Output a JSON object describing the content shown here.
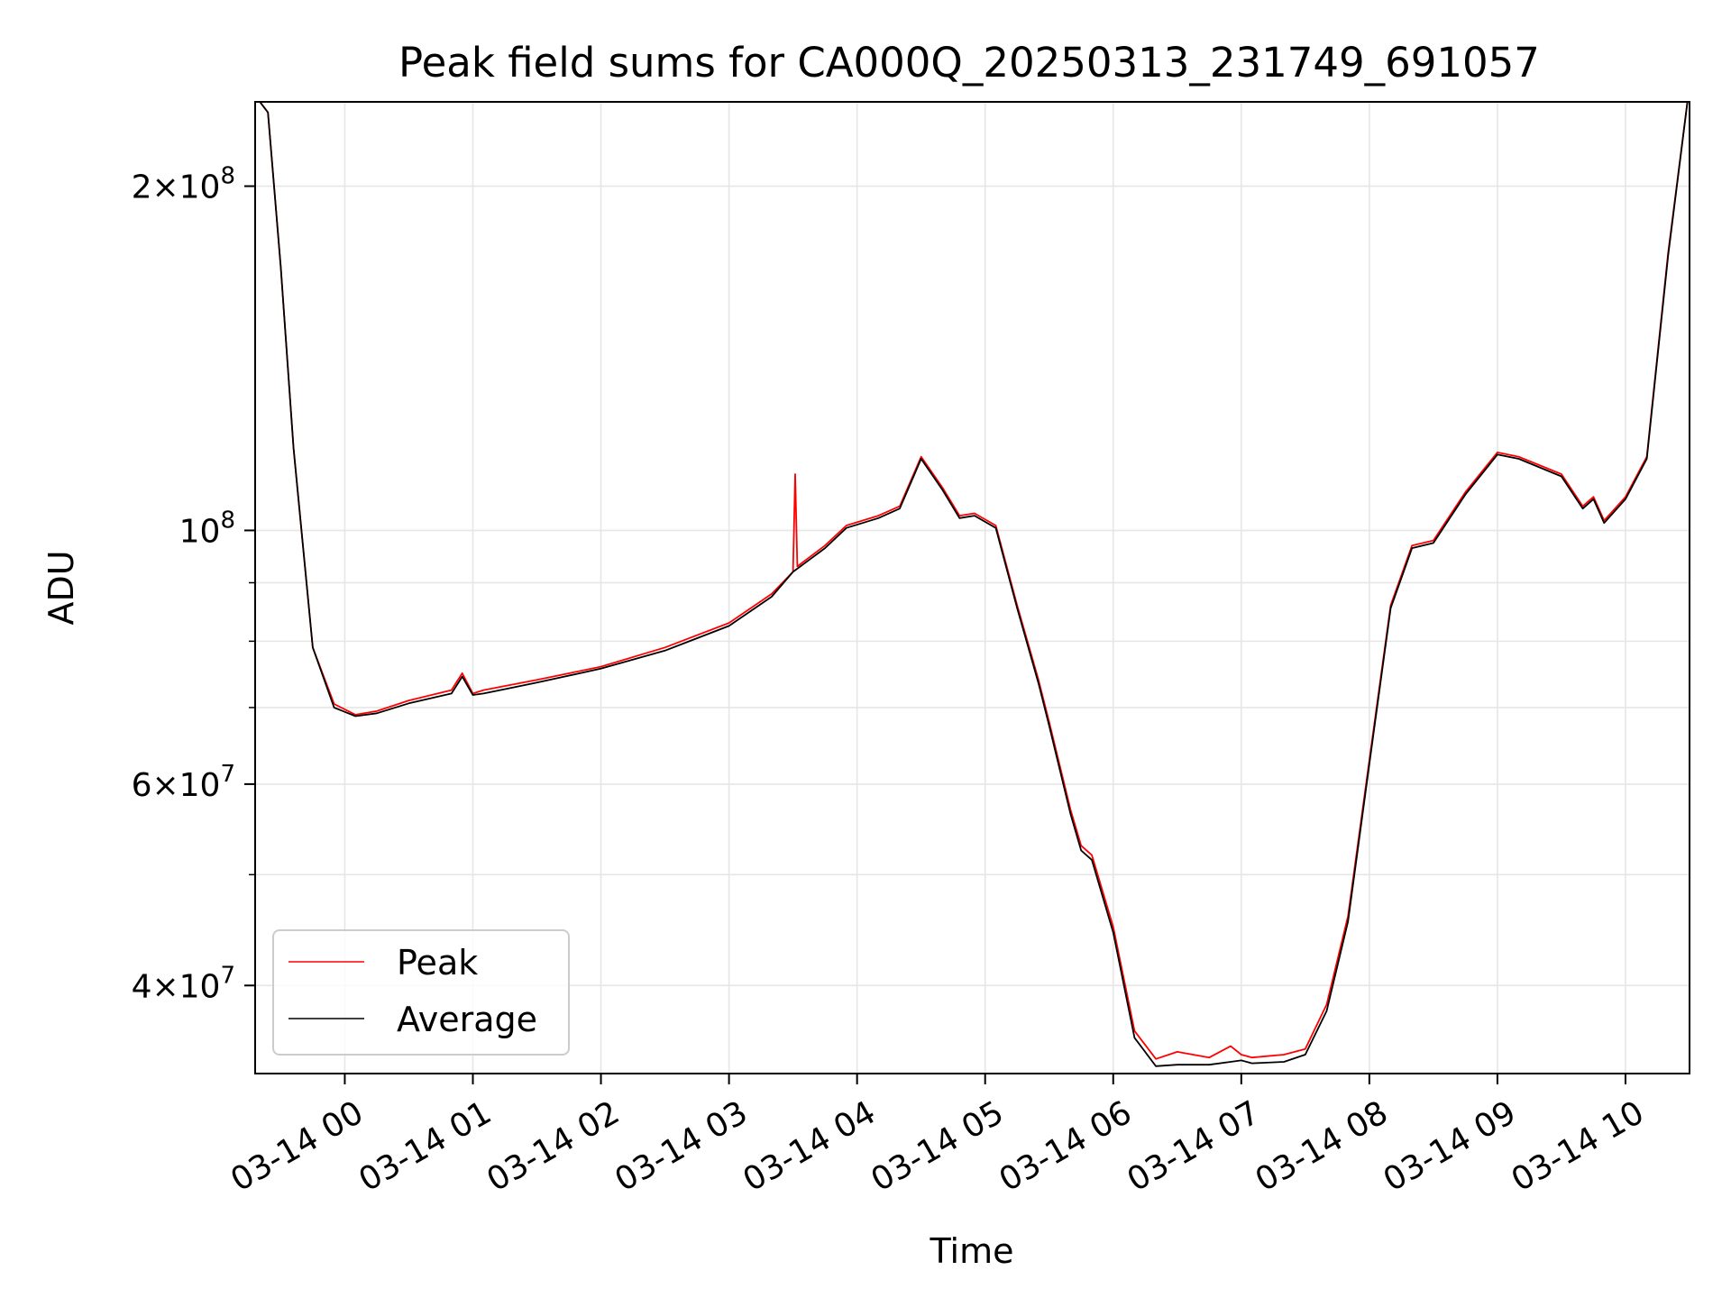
{
  "chart_data": {
    "type": "line",
    "title": "Peak field sums for CA000Q_20250313_231749_691057",
    "xlabel": "Time",
    "ylabel": "ADU",
    "yscale": "log",
    "xlim": [
      "2025-03-13 23:18",
      "2025-03-14 10:30"
    ],
    "ylim": [
      33500000,
      237000000
    ],
    "grid": true,
    "legend_position": "lower-left",
    "x_ticks": [
      {
        "t": "2025-03-14 00:00",
        "label": "03-14 00"
      },
      {
        "t": "2025-03-14 01:00",
        "label": "03-14 01"
      },
      {
        "t": "2025-03-14 02:00",
        "label": "03-14 02"
      },
      {
        "t": "2025-03-14 03:00",
        "label": "03-14 03"
      },
      {
        "t": "2025-03-14 04:00",
        "label": "03-14 04"
      },
      {
        "t": "2025-03-14 05:00",
        "label": "03-14 05"
      },
      {
        "t": "2025-03-14 06:00",
        "label": "03-14 06"
      },
      {
        "t": "2025-03-14 07:00",
        "label": "03-14 07"
      },
      {
        "t": "2025-03-14 08:00",
        "label": "03-14 08"
      },
      {
        "t": "2025-03-14 09:00",
        "label": "03-14 09"
      },
      {
        "t": "2025-03-14 10:00",
        "label": "03-14 10"
      }
    ],
    "y_major_ticks": [
      {
        "value": 40000000,
        "mantissa": "4",
        "exp": "7"
      },
      {
        "value": 60000000,
        "mantissa": "6",
        "exp": "7"
      },
      {
        "value": 100000000,
        "mantissa": "",
        "exp": "8"
      },
      {
        "value": 200000000,
        "mantissa": "2",
        "exp": "8"
      }
    ],
    "y_minor_ticks": [
      50000000,
      70000000,
      80000000,
      90000000
    ],
    "series": [
      {
        "name": "Peak",
        "color": "#ff0000",
        "x": [
          "2025-03-13 23:18",
          "2025-03-13 23:24",
          "2025-03-13 23:30",
          "2025-03-13 23:36",
          "2025-03-13 23:45",
          "2025-03-13 23:55",
          "2025-03-14 00:05",
          "2025-03-14 00:15",
          "2025-03-14 00:30",
          "2025-03-14 00:50",
          "2025-03-14 00:55",
          "2025-03-14 01:00",
          "2025-03-14 01:05",
          "2025-03-14 01:30",
          "2025-03-14 02:00",
          "2025-03-14 02:30",
          "2025-03-14 03:00",
          "2025-03-14 03:20",
          "2025-03-14 03:30",
          "2025-03-14 03:31",
          "2025-03-14 03:32",
          "2025-03-14 03:45",
          "2025-03-14 03:55",
          "2025-03-14 04:10",
          "2025-03-14 04:20",
          "2025-03-14 04:30",
          "2025-03-14 04:40",
          "2025-03-14 04:48",
          "2025-03-14 04:55",
          "2025-03-14 05:05",
          "2025-03-14 05:15",
          "2025-03-14 05:25",
          "2025-03-14 05:30",
          "2025-03-14 05:40",
          "2025-03-14 05:45",
          "2025-03-14 05:50",
          "2025-03-14 06:00",
          "2025-03-14 06:10",
          "2025-03-14 06:20",
          "2025-03-14 06:30",
          "2025-03-14 06:45",
          "2025-03-14 06:55",
          "2025-03-14 07:00",
          "2025-03-14 07:05",
          "2025-03-14 07:20",
          "2025-03-14 07:30",
          "2025-03-14 07:40",
          "2025-03-14 07:50",
          "2025-03-14 08:00",
          "2025-03-14 08:10",
          "2025-03-14 08:20",
          "2025-03-14 08:30",
          "2025-03-14 08:45",
          "2025-03-14 09:00",
          "2025-03-14 09:10",
          "2025-03-14 09:30",
          "2025-03-14 09:40",
          "2025-03-14 09:45",
          "2025-03-14 09:50",
          "2025-03-14 10:00",
          "2025-03-14 10:10",
          "2025-03-14 10:20",
          "2025-03-14 10:30"
        ],
        "y": [
          240000000,
          232000000,
          170000000,
          118000000,
          79000000,
          70500000,
          69000000,
          69500000,
          71000000,
          72500000,
          75000000,
          72000000,
          72500000,
          74000000,
          76000000,
          79000000,
          83000000,
          88000000,
          92000000,
          112000000,
          93000000,
          97000000,
          101000000,
          103000000,
          105000000,
          116000000,
          109000000,
          103000000,
          103500000,
          101000000,
          86000000,
          74000000,
          68000000,
          57000000,
          53000000,
          52000000,
          45000000,
          36500000,
          34500000,
          35000000,
          34600000,
          35400000,
          34800000,
          34600000,
          34800000,
          35200000,
          38500000,
          46000000,
          63000000,
          86000000,
          97000000,
          98000000,
          108000000,
          117000000,
          116000000,
          112000000,
          105000000,
          107000000,
          102000000,
          107000000,
          116000000,
          175000000,
          245000000
        ]
      },
      {
        "name": "Average",
        "color": "#000000",
        "x": [
          "2025-03-13 23:18",
          "2025-03-13 23:24",
          "2025-03-13 23:30",
          "2025-03-13 23:36",
          "2025-03-13 23:45",
          "2025-03-13 23:55",
          "2025-03-14 00:05",
          "2025-03-14 00:15",
          "2025-03-14 00:30",
          "2025-03-14 00:50",
          "2025-03-14 00:55",
          "2025-03-14 01:00",
          "2025-03-14 01:05",
          "2025-03-14 01:30",
          "2025-03-14 02:00",
          "2025-03-14 02:30",
          "2025-03-14 03:00",
          "2025-03-14 03:20",
          "2025-03-14 03:30",
          "2025-03-14 03:45",
          "2025-03-14 03:55",
          "2025-03-14 04:10",
          "2025-03-14 04:20",
          "2025-03-14 04:30",
          "2025-03-14 04:40",
          "2025-03-14 04:48",
          "2025-03-14 04:55",
          "2025-03-14 05:05",
          "2025-03-14 05:15",
          "2025-03-14 05:25",
          "2025-03-14 05:30",
          "2025-03-14 05:40",
          "2025-03-14 05:45",
          "2025-03-14 05:50",
          "2025-03-14 06:00",
          "2025-03-14 06:10",
          "2025-03-14 06:20",
          "2025-03-14 06:30",
          "2025-03-14 06:45",
          "2025-03-14 06:55",
          "2025-03-14 07:00",
          "2025-03-14 07:05",
          "2025-03-14 07:20",
          "2025-03-14 07:30",
          "2025-03-14 07:40",
          "2025-03-14 07:50",
          "2025-03-14 08:00",
          "2025-03-14 08:10",
          "2025-03-14 08:20",
          "2025-03-14 08:30",
          "2025-03-14 08:45",
          "2025-03-14 09:00",
          "2025-03-14 09:10",
          "2025-03-14 09:30",
          "2025-03-14 09:40",
          "2025-03-14 09:45",
          "2025-03-14 09:50",
          "2025-03-14 10:00",
          "2025-03-14 10:10",
          "2025-03-14 10:20",
          "2025-03-14 10:30"
        ],
        "y": [
          240000000,
          232000000,
          170000000,
          118000000,
          79000000,
          70000000,
          68800000,
          69200000,
          70600000,
          72000000,
          74500000,
          71800000,
          72000000,
          73600000,
          75700000,
          78500000,
          82500000,
          87500000,
          92000000,
          96500000,
          100500000,
          102500000,
          104500000,
          115500000,
          108500000,
          102500000,
          103000000,
          100500000,
          85500000,
          73500000,
          67500000,
          56500000,
          52500000,
          51500000,
          44500000,
          36000000,
          34000000,
          34100000,
          34100000,
          34300000,
          34400000,
          34200000,
          34300000,
          34800000,
          38000000,
          45500000,
          62500000,
          85500000,
          96500000,
          97500000,
          107500000,
          116500000,
          115500000,
          111500000,
          104500000,
          106500000,
          101500000,
          106500000,
          115500000,
          174000000,
          245000000
        ]
      }
    ]
  }
}
